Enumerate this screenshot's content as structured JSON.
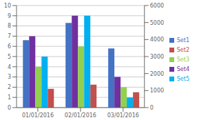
{
  "chart_data": {
    "type": "bar",
    "categories": [
      "01/01/2016",
      "02/01/2016",
      "03/01/2016"
    ],
    "series": [
      {
        "name": "Set1",
        "color": "#4472C4",
        "values": [
          6.6,
          8.3,
          5.8
        ]
      },
      {
        "name": "Set4",
        "color": "#7030A0",
        "values": [
          7.0,
          9.0,
          3.0
        ]
      },
      {
        "name": "Set3",
        "color": "#92D050",
        "values": [
          4.0,
          6.0,
          2.0
        ]
      },
      {
        "name": "Set5",
        "color": "#00B0F0",
        "values": [
          5.0,
          9.0,
          1.0
        ]
      },
      {
        "name": "Set2",
        "color": "#C0504D",
        "values": [
          1100,
          1350,
          900
        ],
        "axis": "y2"
      }
    ],
    "ylim": [
      0,
      10
    ],
    "yticks": [
      0,
      1,
      2,
      3,
      4,
      5,
      6,
      7,
      8,
      9,
      10
    ],
    "y2lim": [
      0,
      6000
    ],
    "y2ticks": [
      0,
      1000,
      2000,
      3000,
      4000,
      5000,
      6000
    ],
    "grid": true,
    "legend": "right"
  }
}
